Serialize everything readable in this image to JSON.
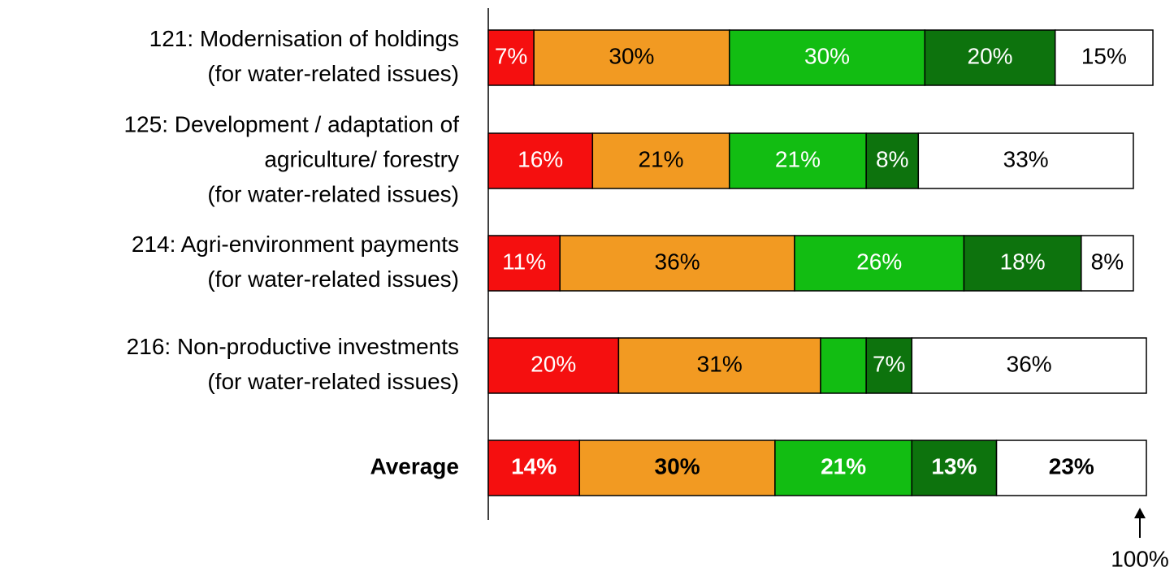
{
  "chart_data": {
    "type": "stacked_barh",
    "categories": [
      [
        "121: Modernisation of holdings",
        "(for water-related issues)"
      ],
      [
        "125: Development / adaptation of",
        "agriculture/ forestry",
        "(for water-related issues)"
      ],
      [
        "214: Agri-environment payments",
        "(for water-related issues)"
      ],
      [
        "216: Non-productive investments",
        "(for water-related issues)"
      ],
      [
        "Average"
      ]
    ],
    "bold_categories": [
      false,
      false,
      false,
      false,
      true
    ],
    "xlim": [
      0,
      100
    ],
    "series": [
      {
        "color": "#f50f0f",
        "label_color": "#ffffff",
        "values": [
          7,
          16,
          11,
          20,
          14
        ],
        "value_labels": [
          "7%",
          "16%",
          "11%",
          "20%",
          "14%"
        ]
      },
      {
        "color": "#f29a22",
        "label_color": "#000000",
        "values": [
          30,
          21,
          36,
          31,
          30
        ],
        "value_labels": [
          "30%",
          "21%",
          "36%",
          "31%",
          "30%"
        ]
      },
      {
        "color": "#12bd12",
        "label_color": "#ffffff",
        "values": [
          30,
          21,
          26,
          7,
          21
        ],
        "value_labels": [
          "30%",
          "21%",
          "26%",
          null,
          "21%"
        ]
      },
      {
        "color": "#0d730d",
        "label_color": "#ffffff",
        "values": [
          20,
          8,
          18,
          7,
          13
        ],
        "value_labels": [
          "20%",
          "8%",
          "18%",
          "7%",
          "13%"
        ]
      },
      {
        "color": "#ffffff",
        "label_color": "#000000",
        "values": [
          15,
          33,
          8,
          36,
          23
        ],
        "value_labels": [
          "15%",
          "33%",
          "8%",
          "36%",
          "23%"
        ]
      }
    ],
    "annotation": {
      "text": "100%",
      "value": 100
    }
  }
}
